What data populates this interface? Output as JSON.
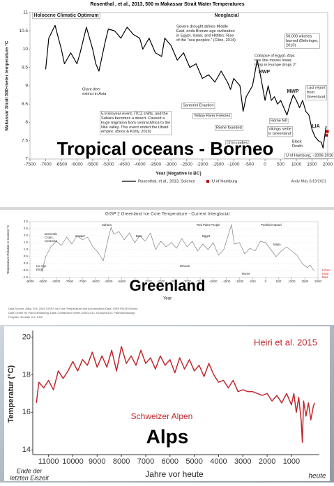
{
  "chart_data": [
    {
      "type": "line",
      "title": "Rosenthal , et al., 2013, 500 m Makassar Strait Water Temperatures",
      "y_label": "Makassar Strait 500-meter temperature °C",
      "x_label": "Year (Negative is BC)",
      "xlim": [
        -7500,
        2000
      ],
      "xticks": [
        -7500,
        -7000,
        -6500,
        -6000,
        -5500,
        -5000,
        -4500,
        -4000,
        -3500,
        -3000,
        -2500,
        -2000,
        -1500,
        -1000,
        -500,
        0,
        500,
        1000,
        1500,
        2000
      ],
      "ylim": [
        7,
        11
      ],
      "yticks": [
        7,
        7.5,
        8,
        8.5,
        9,
        9.5,
        10,
        10.5,
        11
      ],
      "grid": false,
      "series": [
        {
          "name": "Rosenthal, et al., 2013, Science",
          "color": "#000000",
          "mode": "lines",
          "x": [
            -7000,
            -6900,
            -6700,
            -6500,
            -6400,
            -6200,
            -6000,
            -5900,
            -5700,
            -5500,
            -5400,
            -5300,
            -5100,
            -5000,
            -4800,
            -4600,
            -4400,
            -4200,
            -4000,
            -3900,
            -3700,
            -3500,
            -3300,
            -3200,
            -3000,
            -2800,
            -2600,
            -2400,
            -2200,
            -2000,
            -1800,
            -1600,
            -1400,
            -1200,
            -1100,
            -1000,
            -800,
            -700,
            -600,
            -400,
            -250,
            -150,
            0,
            100,
            200,
            300,
            400,
            500,
            600,
            700,
            800,
            900,
            1000,
            1100,
            1200,
            1300,
            1400,
            1500,
            1600,
            1700,
            1800,
            1850,
            1900,
            1950
          ],
          "values": [
            9.45,
            10.3,
            10.65,
            10.0,
            9.6,
            9.9,
            9.6,
            9.9,
            10.6,
            10.0,
            9.6,
            9.4,
            10.2,
            10.55,
            10.5,
            10.3,
            10.6,
            10.4,
            10.3,
            10.0,
            10.3,
            9.9,
            9.8,
            10.3,
            10.1,
            9.7,
            9.9,
            9.5,
            9.6,
            9.2,
            9.3,
            9.1,
            9.4,
            9.1,
            8.9,
            9.2,
            9.0,
            8.3,
            8.7,
            9.0,
            9.7,
            9.3,
            8.6,
            9.0,
            8.6,
            8.7,
            8.5,
            8.6,
            8.4,
            8.2,
            8.5,
            8.75,
            8.6,
            8.4,
            8.6,
            8.3,
            8.2,
            7.8,
            7.6,
            7.5,
            7.45,
            7.3,
            7.6,
            7.9
          ]
        },
        {
          "name": "U of Hamburg",
          "color": "#c00000",
          "mode": "markers",
          "x": [
            1960,
            1990
          ],
          "values": [
            7.65,
            7.75
          ]
        }
      ],
      "annotations": [
        "Holocene Climatic Optimum",
        "Neoglacial",
        [
          "Severe drought strikes Middle",
          "East, ends Bronze age civilization",
          "in Egypt, Israel, and Hittites. Rise",
          "of the \"sea peoples.\" (Cline, 2014)"
        ],
        [
          "50,000 witches",
          "burned (Behringer,",
          "2010)"
        ],
        [
          "Collapse of Egypt. Alps",
          "tree line moves lower,",
          "temp in Europe drops 2°"
        ],
        "RWP",
        "MWP",
        [
          "Last report",
          "from",
          "Greenland"
        ],
        [
          "Giant deer",
          "extinct in Asia"
        ],
        "Santorini Eruption",
        "Yellow River Freezes",
        [
          "5.9 kiloyear event, ITCZ shifts, and the",
          "Sahara becomes a desert. Caused a",
          "huge migration from central Africa to the",
          "Nile valley. This event ended the Ubaid",
          "empire. (Boos & Korty, 2016)"
        ],
        "Rome fell",
        "Rome founded",
        [
          "Vikings settle",
          "in Greenland"
        ],
        "LIA",
        [
          "Black",
          "Death"
        ],
        "Ch'in unifies",
        "U of Hamburg, ~2006-2016"
      ],
      "overlay": "Tropical oceans - Borneo",
      "credit": "Andy May   6/19/2021"
    },
    {
      "type": "line",
      "title": "GISP 2 Greenland Ice Core Temperature - Current Interglacial",
      "y_label": "Temperature Relative to Current °C",
      "x_label": "Year",
      "xlim": [
        -9000,
        2000
      ],
      "xticks": [
        -9000,
        -8500,
        -8000,
        -7500,
        -7000,
        -6500,
        -6000,
        -5500,
        -5000,
        -4500,
        -4000,
        -3500,
        -3000,
        -2500,
        -2000,
        -1500,
        -1000,
        -500,
        0,
        500,
        1000,
        1500,
        2000
      ],
      "ylim": [
        -1,
        3
      ],
      "yticks": [
        {
          "value": -1,
          "label": "-1.0"
        },
        -0.5,
        {
          "value": 0,
          "label": "0.0"
        },
        0.5,
        {
          "value": 1,
          "label": "1.0"
        },
        1.5,
        {
          "value": 2,
          "label": "2.0"
        },
        2.5,
        {
          "value": 3,
          "label": "3.0"
        }
      ],
      "grid": true,
      "series": [
        {
          "color": "#808080",
          "mode": "lines",
          "x": [
            -8550,
            -8400,
            -8200,
            -8000,
            -7800,
            -7600,
            -7400,
            -7200,
            -7000,
            -6800,
            -6600,
            -6400,
            -6200,
            -6000,
            -5900,
            -5800,
            -5600,
            -5400,
            -5200,
            -5000,
            -4800,
            -4600,
            -4400,
            -4200,
            -4000,
            -3800,
            -3600,
            -3400,
            -3200,
            -3000,
            -2800,
            -2600,
            -2400,
            -2200,
            -2000,
            -1800,
            -1600,
            -1400,
            -1300,
            -1200,
            -1000,
            -800,
            -600,
            -400,
            -200,
            0,
            200,
            400,
            600,
            800,
            1000,
            1200,
            1400,
            1600,
            1700,
            1800,
            1855
          ],
          "values": [
            -0.6,
            0.5,
            1.2,
            1.6,
            1.3,
            1.9,
            1.4,
            2.0,
            1.7,
            1.9,
            1.2,
            0.8,
            0.2,
            1.9,
            2.6,
            2.1,
            2.3,
            1.7,
            2.2,
            1.5,
            2.0,
            1.6,
            2.2,
            1.0,
            1.6,
            1.2,
            1.5,
            1.1,
            1.8,
            1.2,
            1.6,
            0.9,
            1.4,
            1.0,
            1.5,
            0.6,
            1.0,
            2.2,
            2.8,
            1.4,
            1.5,
            0.7,
            1.1,
            0.9,
            1.6,
            1.5,
            1.0,
            0.5,
            0.9,
            1.2,
            0.9,
            0.6,
            0.0,
            -0.3,
            -0.1,
            -0.4,
            -0.5
          ]
        }
      ],
      "annotations": [
        [
          "Ice Age",
          "Ends"
        ],
        [
          "Domestic",
          "Crops,",
          "Ceramics"
        ],
        "Copper",
        "Sahara",
        "Beer",
        "Egypt",
        "Red Paint People",
        "Pueblo/Anasazi",
        "Minoan",
        "Maya",
        "Rome",
        [
          "Urban",
          "Heat",
          "Bias"
        ]
      ],
      "overlay": "Greenland",
      "source": [
        "Data Source: Alley, R.B. 2004 GISP2 Ice Core Temperature and Accumulation Data. IGBP PAGES/World",
        "Data Center for Paleoclimatology Data Contribution Series #2004-013. NOAA/NGDC Paleoclimatology",
        "Program, Boulder CO, USA."
      ]
    },
    {
      "type": "line",
      "title": "Heiri et al. 2015",
      "y_label": "Temperatur (°C)",
      "x_label": "Jahre vor heute",
      "xlim": [
        11650,
        -150
      ],
      "xticks": [
        11000,
        10000,
        9000,
        8000,
        7000,
        6000,
        5000,
        4000,
        3000,
        2000,
        1000
      ],
      "ylim": [
        13.75,
        20.35
      ],
      "yticks": [
        14,
        16,
        18,
        20
      ],
      "grid": false,
      "series": [
        {
          "name": "Schweizer Alpen",
          "color": "#c0282d",
          "mode": "lines",
          "x": [
            11500,
            11400,
            11200,
            11000,
            10800,
            10600,
            10400,
            10200,
            10000,
            9800,
            9600,
            9400,
            9200,
            9000,
            8800,
            8600,
            8400,
            8200,
            8000,
            7800,
            7600,
            7400,
            7200,
            7000,
            6800,
            6600,
            6400,
            6200,
            6000,
            5800,
            5600,
            5400,
            5200,
            5000,
            4800,
            4600,
            4400,
            4200,
            4000,
            3800,
            3600,
            3400,
            3200,
            3000,
            2800,
            2600,
            2400,
            2200,
            2000,
            1800,
            1600,
            1400,
            1200,
            1000,
            900,
            800,
            700,
            600,
            550,
            500,
            400,
            300,
            200,
            100,
            50
          ],
          "values": [
            16.5,
            17.6,
            17.3,
            17.7,
            17.2,
            18.2,
            17.8,
            18.2,
            18.7,
            18.2,
            18.8,
            18.5,
            19.2,
            18.4,
            19.0,
            18.4,
            19.3,
            18.2,
            19.5,
            18.6,
            19.0,
            18.5,
            19.3,
            18.6,
            18.9,
            18.3,
            19.0,
            18.5,
            18.8,
            18.1,
            18.9,
            18.3,
            18.8,
            18.2,
            18.5,
            17.9,
            18.6,
            18.0,
            17.6,
            17.7,
            17.3,
            17.7,
            17.1,
            17.2,
            17.1,
            17.1,
            17.0,
            16.9,
            17.0,
            16.6,
            16.9,
            16.5,
            17.0,
            16.4,
            17.0,
            16.0,
            16.8,
            15.6,
            14.4,
            16.6,
            15.8,
            16.5,
            15.6,
            16.3,
            16.5
          ]
        }
      ],
      "annotations": [
        [
          "Ende der",
          "letzten Eiszeit"
        ],
        "heute"
      ],
      "overlay": "Alps"
    }
  ]
}
